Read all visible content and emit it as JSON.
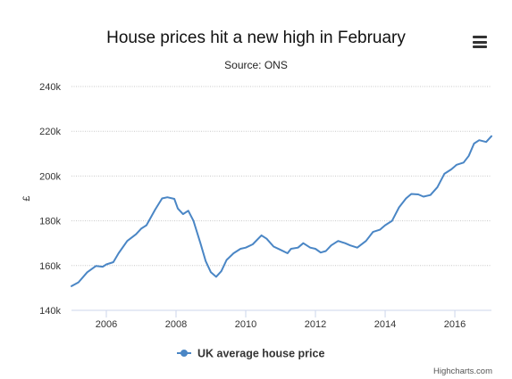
{
  "header": {
    "title": "House prices hit a new high in February",
    "subtitle": "Source: ONS",
    "menu_icon": "hamburger-menu-icon"
  },
  "credits": "Highcharts.com",
  "colors": {
    "series": "#4a86c5",
    "grid": "#c8c8c8",
    "axis": "#ccd6eb"
  },
  "chart_data": {
    "type": "line",
    "title": "House prices hit a new high in February",
    "subtitle": "Source: ONS",
    "xlabel": "",
    "ylabel": "£",
    "xlim": [
      2005.0,
      2017.05
    ],
    "ylim": [
      140000,
      240000
    ],
    "y_ticks": [
      140000,
      160000,
      180000,
      200000,
      220000,
      240000
    ],
    "y_tick_labels": [
      "140k",
      "160k",
      "180k",
      "200k",
      "220k",
      "240k"
    ],
    "x_ticks": [
      2006,
      2008,
      2010,
      2012,
      2014,
      2016
    ],
    "x_tick_labels": [
      "2006",
      "2008",
      "2010",
      "2012",
      "2014",
      "2016"
    ],
    "grid": true,
    "legend": {
      "position": "bottom-center",
      "entries": [
        "UK average house price"
      ]
    },
    "series": [
      {
        "name": "UK average house price",
        "points": [
          [
            2005.0,
            150800
          ],
          [
            2005.2,
            152500
          ],
          [
            2005.45,
            157000
          ],
          [
            2005.7,
            159800
          ],
          [
            2005.9,
            159500
          ],
          [
            2006.0,
            160500
          ],
          [
            2006.2,
            161500
          ],
          [
            2006.35,
            165500
          ],
          [
            2006.6,
            171000
          ],
          [
            2006.85,
            174000
          ],
          [
            2007.0,
            176500
          ],
          [
            2007.15,
            178000
          ],
          [
            2007.4,
            185000
          ],
          [
            2007.6,
            190000
          ],
          [
            2007.75,
            190500
          ],
          [
            2007.95,
            189800
          ],
          [
            2008.05,
            185500
          ],
          [
            2008.2,
            183000
          ],
          [
            2008.35,
            184500
          ],
          [
            2008.5,
            180000
          ],
          [
            2008.7,
            170000
          ],
          [
            2008.85,
            162000
          ],
          [
            2009.0,
            157000
          ],
          [
            2009.15,
            155000
          ],
          [
            2009.3,
            157500
          ],
          [
            2009.45,
            162500
          ],
          [
            2009.65,
            165500
          ],
          [
            2009.85,
            167500
          ],
          [
            2010.0,
            168000
          ],
          [
            2010.2,
            169500
          ],
          [
            2010.45,
            173500
          ],
          [
            2010.6,
            172000
          ],
          [
            2010.8,
            168500
          ],
          [
            2011.0,
            167000
          ],
          [
            2011.2,
            165500
          ],
          [
            2011.3,
            167500
          ],
          [
            2011.5,
            168000
          ],
          [
            2011.65,
            170000
          ],
          [
            2011.85,
            168000
          ],
          [
            2012.0,
            167500
          ],
          [
            2012.15,
            165800
          ],
          [
            2012.3,
            166500
          ],
          [
            2012.45,
            169000
          ],
          [
            2012.65,
            171000
          ],
          [
            2012.85,
            170000
          ],
          [
            2013.0,
            169000
          ],
          [
            2013.2,
            168000
          ],
          [
            2013.45,
            171000
          ],
          [
            2013.65,
            175000
          ],
          [
            2013.85,
            176000
          ],
          [
            2014.0,
            178000
          ],
          [
            2014.2,
            180000
          ],
          [
            2014.4,
            186000
          ],
          [
            2014.6,
            190000
          ],
          [
            2014.75,
            192000
          ],
          [
            2014.95,
            191800
          ],
          [
            2015.1,
            190800
          ],
          [
            2015.3,
            191500
          ],
          [
            2015.5,
            195000
          ],
          [
            2015.7,
            201000
          ],
          [
            2015.9,
            203000
          ],
          [
            2016.05,
            205000
          ],
          [
            2016.25,
            206000
          ],
          [
            2016.4,
            209000
          ],
          [
            2016.55,
            214500
          ],
          [
            2016.7,
            216000
          ],
          [
            2016.9,
            215200
          ],
          [
            2017.05,
            217800
          ]
        ]
      }
    ]
  }
}
